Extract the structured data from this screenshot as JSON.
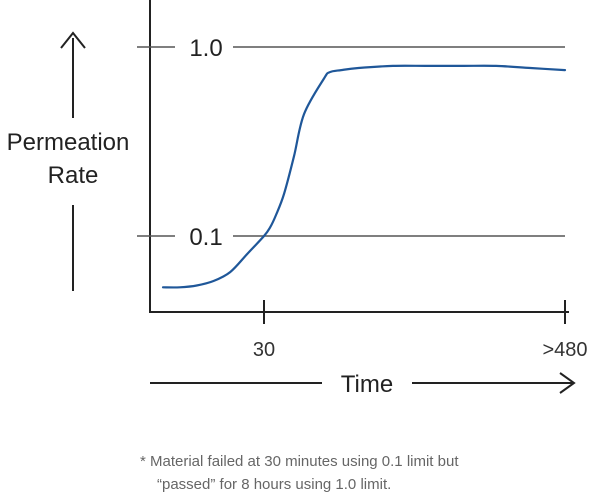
{
  "chart_data": {
    "type": "line",
    "title": "",
    "xlabel": "Time",
    "ylabel": [
      "Permeation",
      "Rate"
    ],
    "x_ticks": [
      "30",
      ">480"
    ],
    "y_ticks": [
      "1.0",
      "0.1"
    ],
    "threshold_lines": [
      1.0,
      0.1
    ],
    "series": [
      {
        "color": "#1f5799",
        "points": [
          [
            0,
            0.043
          ],
          [
            5,
            0.043
          ],
          [
            10,
            0.045
          ],
          [
            15,
            0.05
          ],
          [
            20,
            0.06
          ],
          [
            25,
            0.08
          ],
          [
            30,
            0.1
          ],
          [
            33,
            0.14
          ],
          [
            36,
            0.2
          ],
          [
            40,
            0.3
          ],
          [
            45,
            0.48
          ],
          [
            50,
            0.68
          ],
          [
            60,
            0.85
          ],
          [
            70,
            0.88
          ],
          [
            90,
            0.89
          ],
          [
            120,
            0.9
          ],
          [
            180,
            0.91
          ],
          [
            240,
            0.91
          ],
          [
            300,
            0.91
          ],
          [
            360,
            0.91
          ],
          [
            420,
            0.9
          ],
          [
            480,
            0.89
          ]
        ]
      }
    ],
    "footnote": {
      "line1": "* Material failed at 30 minutes using 0.1 limit but",
      "line2": "“passed” for 8 hours using 1.0 limit."
    }
  }
}
